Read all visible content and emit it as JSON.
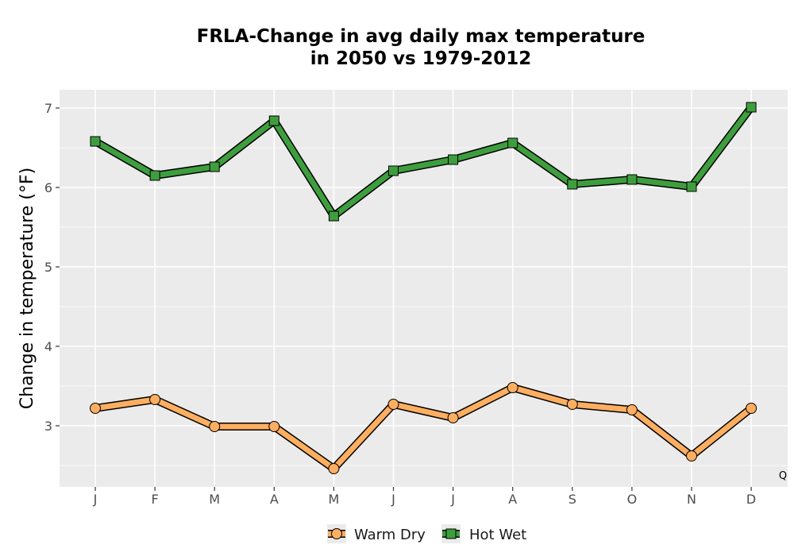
{
  "chart_data": {
    "type": "line",
    "title_lines": [
      "FRLA-Change in avg daily max temperature",
      "in 2050 vs 1979-2012"
    ],
    "xlabel": "",
    "ylabel": "Change in temperature (°F)",
    "categories": [
      "J",
      "F",
      "M",
      "A",
      "M",
      "J",
      "J",
      "A",
      "S",
      "O",
      "N",
      "D"
    ],
    "ylim": [
      2.23,
      7.23
    ],
    "yticks": [
      3,
      4,
      5,
      6,
      7
    ],
    "grid": true,
    "legend_position": "bottom",
    "annotation": "Q",
    "series": [
      {
        "name": "Warm Dry",
        "marker": "circle",
        "color": "#fdae61",
        "values": [
          3.22,
          3.33,
          2.99,
          2.99,
          2.46,
          3.27,
          3.1,
          3.48,
          3.27,
          3.2,
          2.62,
          3.22
        ]
      },
      {
        "name": "Hot Wet",
        "marker": "square",
        "color": "#3e9e3e",
        "values": [
          6.58,
          6.15,
          6.26,
          6.84,
          5.64,
          6.21,
          6.35,
          6.56,
          6.04,
          6.1,
          6.01,
          7.01
        ]
      }
    ]
  }
}
